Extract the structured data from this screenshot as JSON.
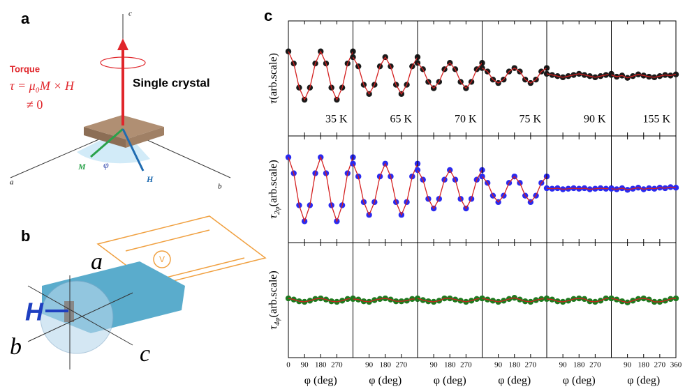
{
  "panel_a": {
    "label": "a",
    "torque": "Torque",
    "formula": "τ = μ₀M × H",
    "neq": "≠ 0",
    "sample": "Single crystal",
    "axis_c": "c",
    "axis_a": "a",
    "axis_b": "b",
    "vec_m": "M",
    "angle": "φ",
    "vec_h": "H"
  },
  "panel_b": {
    "label": "b",
    "axis_a": "a",
    "vec_h": "H",
    "axis_b": "b",
    "axis_c": "c",
    "meter": "V"
  },
  "chart_data": {
    "type": "scatter",
    "panel_label": "c",
    "x": [
      0,
      30,
      60,
      90,
      120,
      150,
      180,
      210,
      240,
      270,
      300,
      330,
      360
    ],
    "xlim": [
      0,
      360
    ],
    "xticks": [
      0,
      90,
      180,
      270,
      360
    ],
    "xlabel": "φ (deg)",
    "ylim": [
      -1,
      1
    ],
    "columns": [
      "35 K",
      "65 K",
      "70 K",
      "75 K",
      "90 K",
      "155 K"
    ],
    "fit_color": "#d42020",
    "rows": [
      {
        "symbol": "τ",
        "unit": "(arb.scale)",
        "color": "#1a1a1a",
        "values": [
          [
            0.47,
            0.26,
            -0.16,
            -0.37,
            -0.16,
            0.26,
            0.47,
            0.26,
            -0.16,
            -0.37,
            -0.16,
            0.26,
            0.47
          ],
          [
            0.37,
            0.21,
            -0.11,
            -0.27,
            -0.11,
            0.21,
            0.37,
            0.21,
            -0.11,
            -0.27,
            -0.11,
            0.21,
            0.37
          ],
          [
            0.27,
            0.16,
            -0.06,
            -0.17,
            -0.06,
            0.16,
            0.27,
            0.16,
            -0.06,
            -0.17,
            -0.06,
            0.16,
            0.27
          ],
          [
            0.18,
            0.12,
            -0.02,
            -0.08,
            -0.02,
            0.12,
            0.18,
            0.12,
            -0.02,
            -0.08,
            -0.02,
            0.12,
            0.18
          ],
          [
            0.08,
            0.06,
            0.04,
            0.02,
            0.04,
            0.06,
            0.08,
            0.06,
            0.04,
            0.02,
            0.04,
            0.06,
            0.08
          ],
          [
            0.06,
            0.03,
            0.05,
            0.01,
            0.04,
            0.07,
            0.05,
            0.03,
            0.02,
            0.04,
            0.06,
            0.05,
            0.07
          ]
        ]
      },
      {
        "symbol": "τ",
        "subscript": "2φ",
        "unit": "(arb.scale)",
        "color": "#2a2af0",
        "values": [
          [
            0.6,
            0.3,
            -0.3,
            -0.6,
            -0.3,
            0.3,
            0.6,
            0.3,
            -0.3,
            -0.6,
            -0.3,
            0.3,
            0.6
          ],
          [
            0.48,
            0.24,
            -0.24,
            -0.48,
            -0.24,
            0.24,
            0.48,
            0.24,
            -0.24,
            -0.48,
            -0.24,
            0.24,
            0.48
          ],
          [
            0.36,
            0.18,
            -0.18,
            -0.36,
            -0.18,
            0.18,
            0.36,
            0.18,
            -0.18,
            -0.36,
            -0.18,
            0.18,
            0.36
          ],
          [
            0.24,
            0.12,
            -0.12,
            -0.24,
            -0.12,
            0.12,
            0.24,
            0.12,
            -0.12,
            -0.24,
            -0.12,
            0.12,
            0.24
          ],
          [
            0.02,
            0.01,
            0.02,
            0.0,
            0.01,
            0.02,
            0.01,
            0.02,
            0.0,
            0.01,
            0.02,
            0.01,
            0.02
          ],
          [
            0.01,
            0.0,
            0.02,
            -0.01,
            0.01,
            0.03,
            0.0,
            0.02,
            0.01,
            0.03,
            0.02,
            0.04,
            0.03
          ]
        ]
      },
      {
        "symbol": "τ",
        "subscript": "4φ",
        "unit": "(arb.scale)",
        "color": "#1f7a1f",
        "values": [
          [
            0.03,
            0.01,
            -0.02,
            -0.03,
            -0.01,
            0.02,
            0.03,
            0.01,
            -0.02,
            -0.03,
            -0.01,
            0.02,
            0.03
          ],
          [
            0.02,
            0.01,
            -0.02,
            -0.03,
            0.0,
            0.02,
            0.03,
            0.01,
            -0.02,
            -0.02,
            -0.01,
            0.02,
            0.02
          ],
          [
            0.03,
            0.0,
            -0.02,
            -0.03,
            -0.01,
            0.03,
            0.03,
            0.01,
            -0.01,
            -0.03,
            -0.01,
            0.02,
            0.03
          ],
          [
            0.03,
            0.01,
            -0.01,
            -0.03,
            -0.01,
            0.02,
            0.04,
            0.01,
            -0.02,
            -0.03,
            0.0,
            0.02,
            0.03
          ],
          [
            0.02,
            0.01,
            -0.02,
            -0.03,
            -0.01,
            0.02,
            0.03,
            0.02,
            -0.02,
            -0.03,
            -0.01,
            0.03,
            0.03
          ],
          [
            0.03,
            0.01,
            -0.02,
            -0.04,
            -0.01,
            0.02,
            0.03,
            0.01,
            -0.03,
            -0.03,
            -0.01,
            0.02,
            0.03
          ]
        ]
      }
    ]
  }
}
